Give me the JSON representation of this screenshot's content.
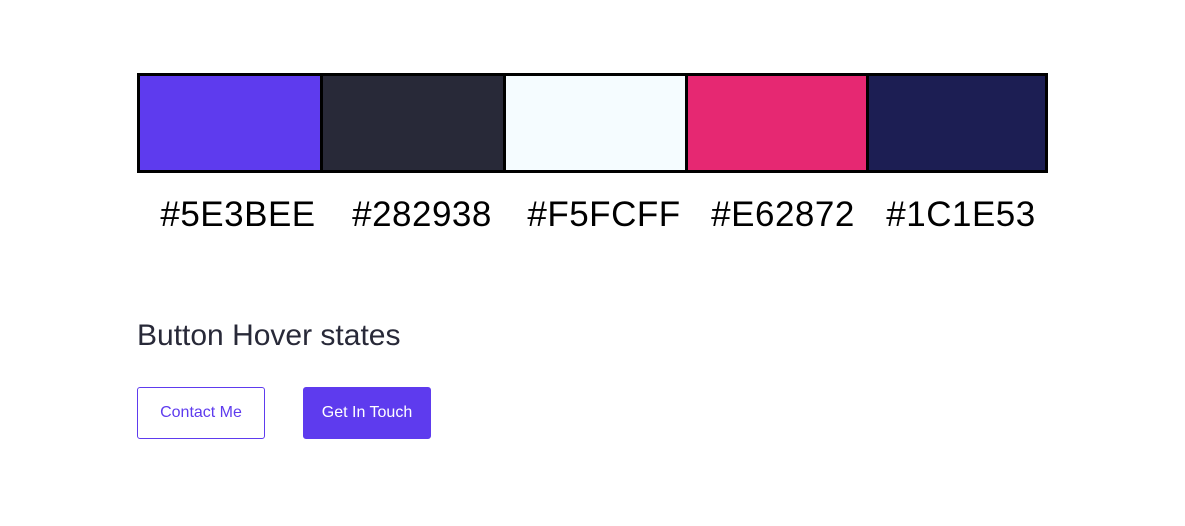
{
  "palette": {
    "swatches": [
      {
        "color": "#5E3BEE",
        "label": "#5E3BEE"
      },
      {
        "color": "#282938",
        "label": "#282938"
      },
      {
        "color": "#F5FCFF",
        "label": "#F5FCFF"
      },
      {
        "color": "#E62872",
        "label": "#E62872"
      },
      {
        "color": "#1C1E53",
        "label": "#1C1E53"
      }
    ]
  },
  "buttons_section": {
    "title": "Button Hover states",
    "outline_button_label": "Contact Me",
    "solid_button_label": "Get In Touch"
  }
}
